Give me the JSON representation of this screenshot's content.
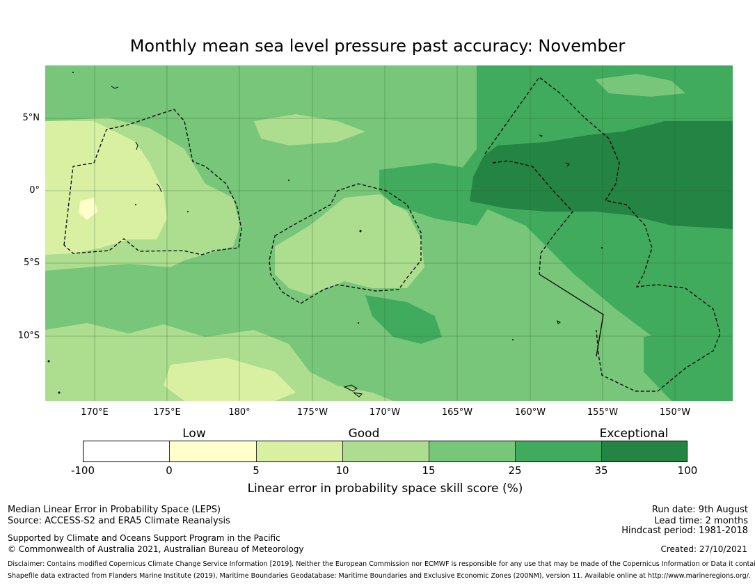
{
  "title": "Monthly mean sea level pressure past accuracy: November",
  "map": {
    "lat_labels": [
      "5°N",
      "0°",
      "5°S",
      "10°S"
    ],
    "lon_labels": [
      "170°E",
      "175°E",
      "180°",
      "175°W",
      "170°W",
      "165°W",
      "160°W",
      "155°W",
      "150°W"
    ],
    "colors": {
      "lt0": "#ffffff",
      "c0_5": "#ffffcc",
      "c5_10": "#d9f0a3",
      "c10_15": "#addd8e",
      "c15_25": "#78c679",
      "c25_35": "#41ab5d",
      "c35_100": "#238443",
      "boundary": "#000000"
    }
  },
  "colorbar": {
    "categories": [
      "Low",
      "Good",
      "Exceptional"
    ],
    "ticks": [
      "-100",
      "0",
      "5",
      "10",
      "15",
      "25",
      "35",
      "100"
    ],
    "segment_colors": [
      "#ffffff",
      "#ffffcc",
      "#d9f0a3",
      "#addd8e",
      "#78c679",
      "#41ab5d",
      "#238443"
    ],
    "label": "Linear error in probability space skill score (%)"
  },
  "footer": {
    "method": "Median Linear Error in Probability Space (LEPS)",
    "source": "Source: ACCESS-S2 and ERA5 Climate Reanalysis",
    "support": "Supported by Climate and Oceans Support Program in the Pacific",
    "copyright": "© Commonwealth of Australia 2021, Australian Bureau of Meteorology",
    "run_date": "Run date: 9th August",
    "lead_time": "Lead time: 2 months",
    "hindcast": "Hindcast period: 1981-2018",
    "created": "Created: 27/10/2021",
    "disclaimer": "Disclaimer: Contains modified Copernicus Climate Change Service Information [2019]. Neither the European Commission nor ECMWF is responsible for any use that may be made of the Copernicus Information or Data it contains.",
    "shapefile": "Shapefile data extracted from Flanders Marine Institute (2019), Maritime Boundaries Geodatabase: Maritime Boundaries and Exclusive Economic Zones (200NM), version 11. Available online at http://www.marineregions.org/."
  }
}
